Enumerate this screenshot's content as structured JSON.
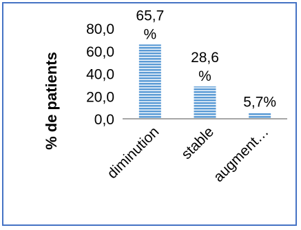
{
  "chart_data": {
    "type": "bar",
    "categories": [
      "diminution",
      "stable",
      "augment…"
    ],
    "values": [
      65.7,
      28.6,
      5.7
    ],
    "data_labels": [
      [
        "65,7",
        "%"
      ],
      [
        "28,6",
        "%"
      ],
      [
        "5,7%"
      ]
    ],
    "ylabel": "% de patients",
    "xlabel": "",
    "ylim": [
      0,
      80
    ],
    "yticks": [
      "0,0",
      "20,0",
      "40,0",
      "60,0",
      "80,0"
    ],
    "ytick_values": [
      0,
      20,
      40,
      60,
      80
    ],
    "grid": false,
    "bar_fill": "horizontal-stripes",
    "colors": {
      "bar": "#5b9bd5",
      "bar_stripe": "#ffffff",
      "axis": "#a6a6a6",
      "border": "#4472c4"
    }
  }
}
